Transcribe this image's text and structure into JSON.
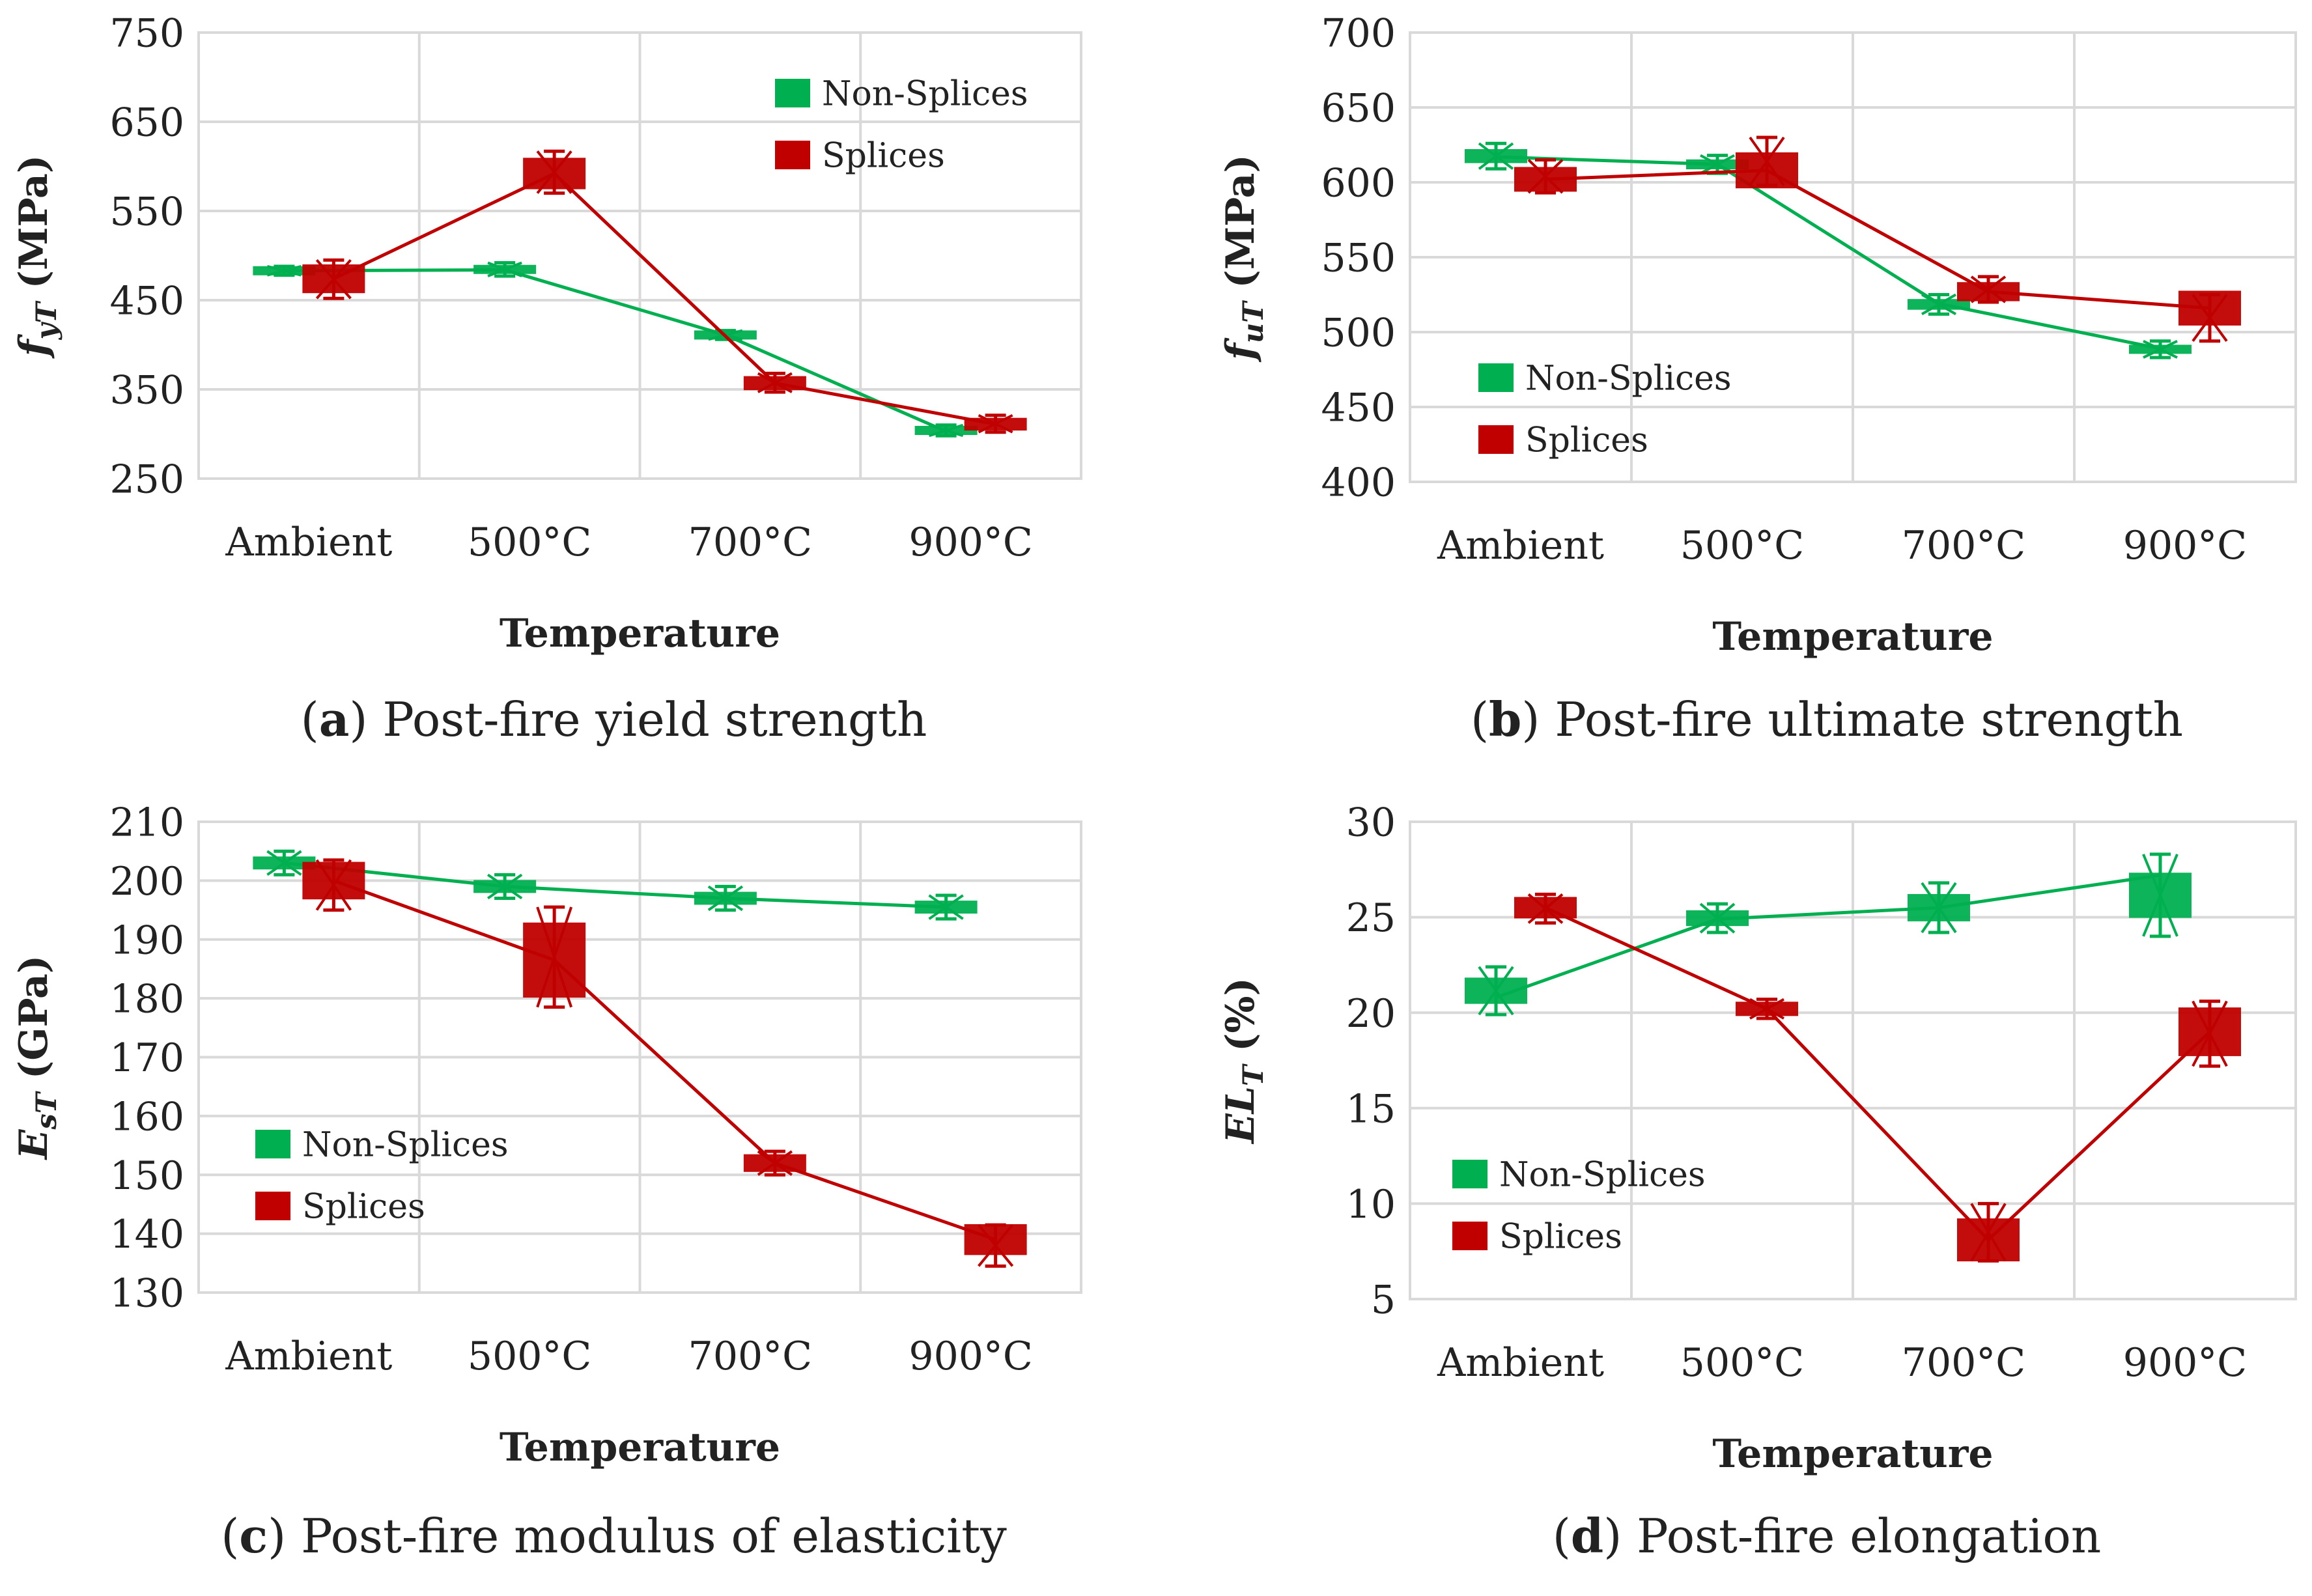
{
  "chart_data": [
    {
      "type": "line",
      "caption_letter": "a",
      "caption_text": " Post-fire yield strength",
      "ylabel_main": "f",
      "ylabel_sub": "yT",
      "ylabel_unit": " (MPa)",
      "xlabel": "Temperature",
      "categories": [
        "Ambient",
        "500°C",
        "700°C",
        "900°C"
      ],
      "ylim": [
        250,
        750
      ],
      "yticks": [
        250,
        350,
        450,
        550,
        650,
        750
      ],
      "legend_position": "top-right",
      "series": [
        {
          "name": "Non-Splices",
          "color": "#00b050",
          "values": [
            483,
            484,
            411,
            303
          ],
          "err_low": [
            478,
            477,
            406,
            298
          ],
          "err_high": [
            488,
            492,
            416,
            310
          ]
        },
        {
          "name": "Splices",
          "color": "#c00000",
          "values": [
            474,
            592,
            357,
            311
          ],
          "err_low": [
            452,
            570,
            347,
            302
          ],
          "err_high": [
            495,
            617,
            368,
            321
          ]
        }
      ]
    },
    {
      "type": "line",
      "caption_letter": "b",
      "caption_text": " Post-fire ultimate strength",
      "ylabel_main": "f",
      "ylabel_sub": "uT",
      "ylabel_unit": " (MPa)",
      "xlabel": "Temperature",
      "categories": [
        "Ambient",
        "500°C",
        "700°C",
        "900°C"
      ],
      "ylim": [
        400,
        700
      ],
      "yticks": [
        400,
        450,
        500,
        550,
        600,
        650,
        700
      ],
      "legend_position": "bottom-left",
      "series": [
        {
          "name": "Non-Splices",
          "color": "#00b050",
          "values": [
            617,
            612,
            519,
            489
          ],
          "err_low": [
            609,
            606,
            512,
            483
          ],
          "err_high": [
            626,
            618,
            525,
            494
          ]
        },
        {
          "name": "Splices",
          "color": "#c00000",
          "values": [
            602,
            608,
            527,
            516
          ],
          "err_low": [
            593,
            598,
            520,
            494
          ],
          "err_high": [
            615,
            630,
            537,
            525
          ]
        }
      ]
    },
    {
      "type": "line",
      "caption_letter": "c",
      "caption_text": " Post-fire modulus of elasticity",
      "ylabel_main": "E",
      "ylabel_sub": "sT",
      "ylabel_unit": " (GPa)",
      "xlabel": "Temperature",
      "categories": [
        "Ambient",
        "500°C",
        "700°C",
        "900°C"
      ],
      "ylim": [
        130,
        210
      ],
      "yticks": [
        130,
        140,
        150,
        160,
        170,
        180,
        190,
        200,
        210
      ],
      "legend_position": "bottom-left",
      "series": [
        {
          "name": "Non-Splices",
          "color": "#00b050",
          "values": [
            203,
            199,
            197,
            195.5
          ],
          "err_low": [
            201,
            197,
            195,
            193.5
          ],
          "err_high": [
            205,
            201,
            199,
            197.5
          ]
        },
        {
          "name": "Splices",
          "color": "#c00000",
          "values": [
            200,
            186.5,
            152,
            139
          ],
          "err_low": [
            195,
            178.5,
            150,
            134.5
          ],
          "err_high": [
            203.5,
            195.5,
            154,
            141.5
          ]
        }
      ]
    },
    {
      "type": "line",
      "caption_letter": "d",
      "caption_text": " Post-fire elongation",
      "ylabel_main": "EL",
      "ylabel_sub": "T",
      "ylabel_unit": " (%)",
      "xlabel": "Temperature",
      "categories": [
        "Ambient",
        "500°C",
        "700°C",
        "900°C"
      ],
      "ylim": [
        5,
        30
      ],
      "yticks": [
        5,
        10,
        15,
        20,
        25,
        30
      ],
      "legend_position": "bottom-left",
      "series": [
        {
          "name": "Non-Splices",
          "color": "#00b050",
          "values": [
            20.8,
            24.9,
            25.5,
            27.2
          ],
          "err_low": [
            19.9,
            24.2,
            24.2,
            24.0
          ],
          "err_high": [
            22.4,
            25.7,
            26.8,
            28.3
          ]
        },
        {
          "name": "Splices",
          "color": "#c00000",
          "values": [
            25.5,
            20.2,
            8.1,
            19.0
          ],
          "err_low": [
            24.7,
            19.7,
            7.0,
            17.2
          ],
          "err_high": [
            26.2,
            20.7,
            10.0,
            20.6
          ]
        }
      ]
    }
  ]
}
